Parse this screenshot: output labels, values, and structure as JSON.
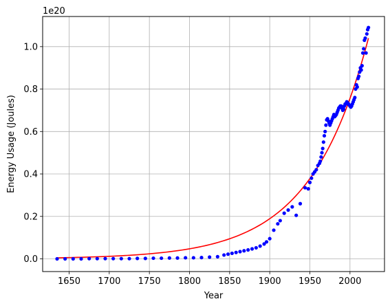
{
  "chart_data": {
    "type": "scatter",
    "xlabel": "Year",
    "ylabel": "Energy Usage (Joules)",
    "offset_text": "1e20",
    "xlim": [
      1617,
      2043
    ],
    "ylim": [
      -0.06,
      1.142
    ],
    "y_scale_factor": 1e+20,
    "xticks": [
      1650,
      1700,
      1750,
      1800,
      1850,
      1900,
      1950,
      2000
    ],
    "yticks": [
      0.0,
      0.2,
      0.4,
      0.6,
      0.8,
      1.0
    ],
    "ytick_labels": [
      "0.0",
      "0.2",
      "0.4",
      "0.6",
      "0.8",
      "1.0"
    ],
    "grid": true,
    "series": [
      {
        "kind": "points",
        "color": "#0000ff",
        "x": [
          1635,
          1645,
          1655,
          1665,
          1675,
          1685,
          1695,
          1705,
          1715,
          1725,
          1735,
          1745,
          1755,
          1765,
          1775,
          1785,
          1795,
          1805,
          1815,
          1825,
          1835,
          1843,
          1848,
          1853,
          1858,
          1863,
          1868,
          1873,
          1878,
          1883,
          1888,
          1893,
          1896,
          1900,
          1905,
          1910,
          1913,
          1918,
          1923,
          1928,
          1933,
          1938,
          1944,
          1948,
          1950,
          1952,
          1954,
          1956,
          1958,
          1960,
          1962,
          1963,
          1964,
          1965,
          1966,
          1967,
          1968,
          1969,
          1970,
          1971,
          1972,
          1973,
          1974,
          1975,
          1976,
          1977,
          1978,
          1979,
          1980,
          1981,
          1982,
          1983,
          1984,
          1985,
          1986,
          1987,
          1988,
          1989,
          1990,
          1991,
          1992,
          1993,
          1994,
          1995,
          1996,
          1997,
          1998,
          1999,
          2000,
          2001,
          2002,
          2003,
          2004,
          2005,
          2006,
          2007,
          2008,
          2009,
          2010,
          2011,
          2012,
          2013,
          2014,
          2015,
          2016,
          2017,
          2018,
          2019,
          2020,
          2021,
          2022,
          2023
        ],
        "y": [
          0.0,
          0.0,
          0.0,
          0.0,
          0.001,
          0.001,
          0.001,
          0.001,
          0.001,
          0.001,
          0.002,
          0.002,
          0.003,
          0.003,
          0.004,
          0.004,
          0.005,
          0.005,
          0.006,
          0.008,
          0.01,
          0.018,
          0.022,
          0.026,
          0.03,
          0.034,
          0.038,
          0.042,
          0.047,
          0.052,
          0.06,
          0.07,
          0.08,
          0.095,
          0.135,
          0.165,
          0.18,
          0.215,
          0.23,
          0.245,
          0.205,
          0.26,
          0.335,
          0.33,
          0.36,
          0.38,
          0.4,
          0.41,
          0.42,
          0.44,
          0.45,
          0.46,
          0.48,
          0.5,
          0.52,
          0.55,
          0.58,
          0.6,
          0.63,
          0.655,
          0.66,
          0.65,
          0.64,
          0.63,
          0.64,
          0.65,
          0.66,
          0.67,
          0.68,
          0.67,
          0.675,
          0.68,
          0.69,
          0.7,
          0.71,
          0.715,
          0.72,
          0.72,
          0.71,
          0.7,
          0.705,
          0.72,
          0.73,
          0.73,
          0.74,
          0.735,
          0.73,
          0.725,
          0.72,
          0.715,
          0.72,
          0.73,
          0.74,
          0.75,
          0.76,
          0.8,
          0.82,
          0.81,
          0.85,
          0.86,
          0.88,
          0.9,
          0.89,
          0.91,
          0.97,
          0.99,
          1.03,
          1.04,
          0.97,
          1.06,
          1.08,
          1.09
        ]
      },
      {
        "kind": "fit-line",
        "color": "#ff0000",
        "x_start": 1635,
        "x_end": 2023,
        "y_start": 0.0048,
        "y_end": 1.04
      }
    ]
  }
}
